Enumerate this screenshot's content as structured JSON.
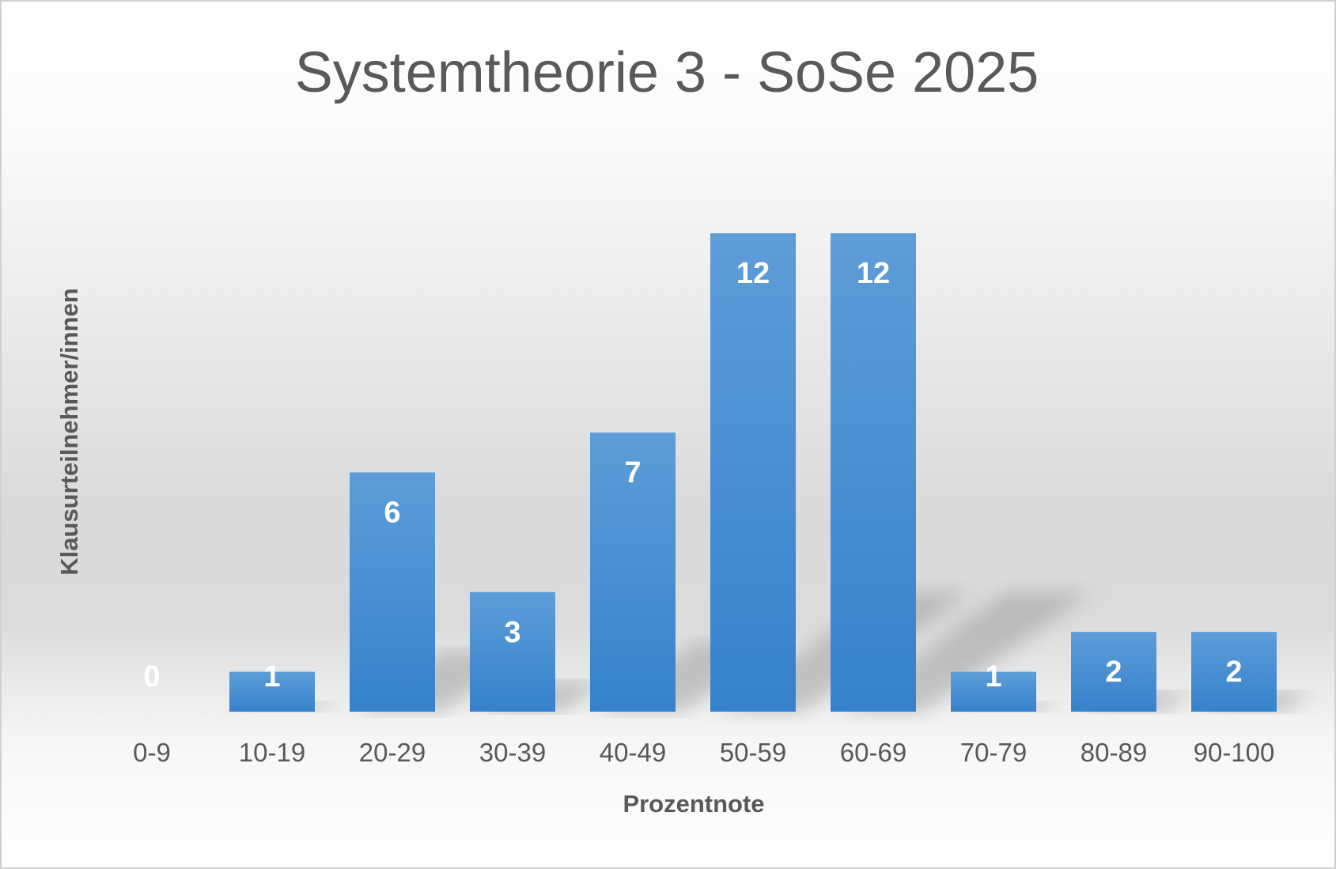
{
  "chart_data": {
    "type": "bar",
    "title": "Systemtheorie 3 - SoSe 2025",
    "xlabel": "Prozentnote",
    "ylabel": "Klausurteilnehmer/innen",
    "categories": [
      "0-9",
      "10-19",
      "20-29",
      "30-39",
      "40-49",
      "50-59",
      "60-69",
      "70-79",
      "80-89",
      "90-100"
    ],
    "values": [
      0,
      1,
      6,
      3,
      7,
      12,
      12,
      1,
      2,
      2
    ],
    "data_labels": true,
    "grid": false,
    "legend": "none",
    "ylim": [
      0,
      12
    ],
    "colors": {
      "bar_top": "#5d9dd8",
      "bar_bottom": "#3582cc",
      "text": "#595959",
      "label": "#ffffff"
    }
  }
}
